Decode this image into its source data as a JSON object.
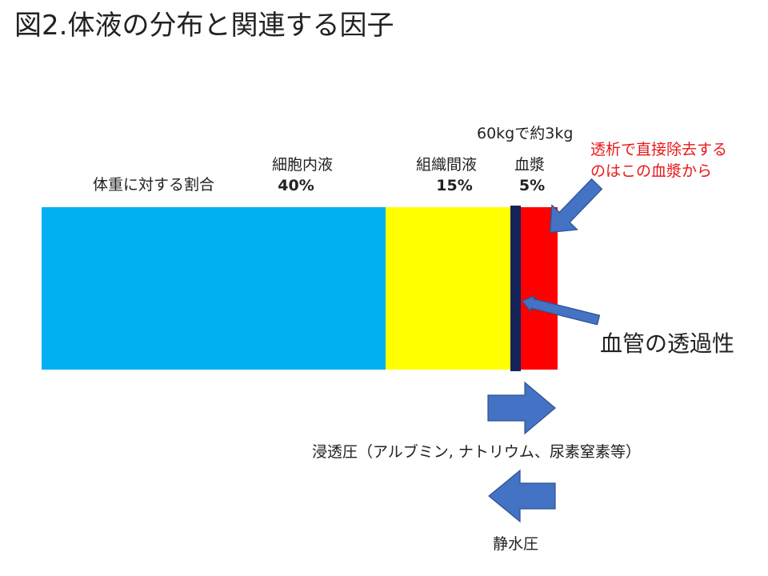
{
  "title": "図2.体液の分布と関連する因子",
  "ratio_label": "体重に対する割合",
  "segments": [
    {
      "name": "細胞内液",
      "percent": "40%",
      "color": "#00b0f0"
    },
    {
      "name": "組織間液",
      "percent": "15%",
      "color": "#ffff00"
    },
    {
      "name": "血漿",
      "percent": "5%",
      "color": "#ff0000"
    }
  ],
  "vessel_wall_color": "#14245a",
  "arrow_color": "#4472c4",
  "weight_note": "60kgで約3kg",
  "dialysis_note": [
    "透析で直接除去する",
    "のはこの血漿から"
  ],
  "dialysis_note_color": "#e81818",
  "permeability_label": "血管の透過性",
  "osmotic_label": "浸透圧（アルブミン, ナトリウム、尿素窒素等）",
  "hydrostatic_label": "静水圧"
}
